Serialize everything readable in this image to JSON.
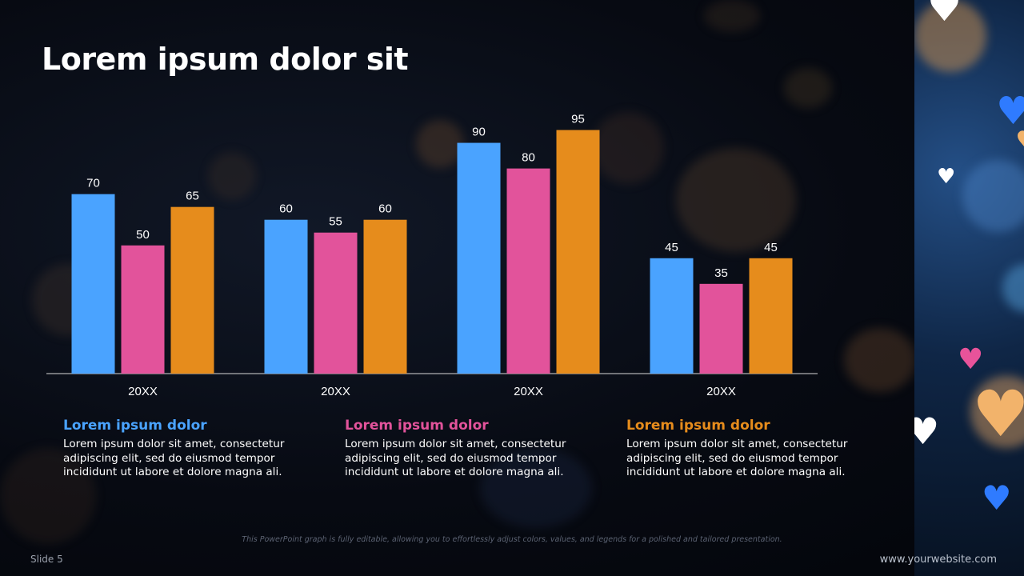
{
  "slide": {
    "title": "Lorem ipsum dolor sit",
    "footnote": "This PowerPoint graph is fully editable, allowing you to effortlessly adjust colors, values, and legends for a polished and tailored presentation.",
    "slide_number": "Slide 5",
    "website": "www.yourwebsite.com"
  },
  "cards": [
    {
      "heading": "Lorem ipsum dolor",
      "body": "Lorem ipsum dolor sit amet, consectetur adipiscing elit, sed do eiusmod tempor incididunt ut labore et dolore magna ali.",
      "color": "#4aa3ff"
    },
    {
      "heading": "Lorem ipsum dolor",
      "body": "Lorem ipsum dolor sit amet, consectetur adipiscing elit, sed do eiusmod tempor incididunt ut labore et dolore magna ali.",
      "color": "#e2539b"
    },
    {
      "heading": "Lorem ipsum dolor",
      "body": "Lorem ipsum dolor sit amet, consectetur adipiscing elit, sed do eiusmod tempor incididunt ut labore et dolore magna ali.",
      "color": "#e68c1c"
    }
  ],
  "chart_data": {
    "type": "bar",
    "categories": [
      "20XX",
      "20XX",
      "20XX",
      "20XX"
    ],
    "series": [
      {
        "values": [
          70,
          60,
          90,
          45
        ],
        "color": "#4aa3ff"
      },
      {
        "values": [
          50,
          55,
          80,
          35
        ],
        "color": "#e2539b"
      },
      {
        "values": [
          65,
          60,
          95,
          45
        ],
        "color": "#e68c1c"
      }
    ],
    "ylim": [
      0,
      100
    ],
    "data_labels": true,
    "grid": false,
    "legend": "none"
  },
  "decor": {
    "heart_glyph": "♥",
    "heart_colors": [
      "#ffffff",
      "#2f7bff",
      "#e8539a",
      "#f2b36b"
    ]
  }
}
